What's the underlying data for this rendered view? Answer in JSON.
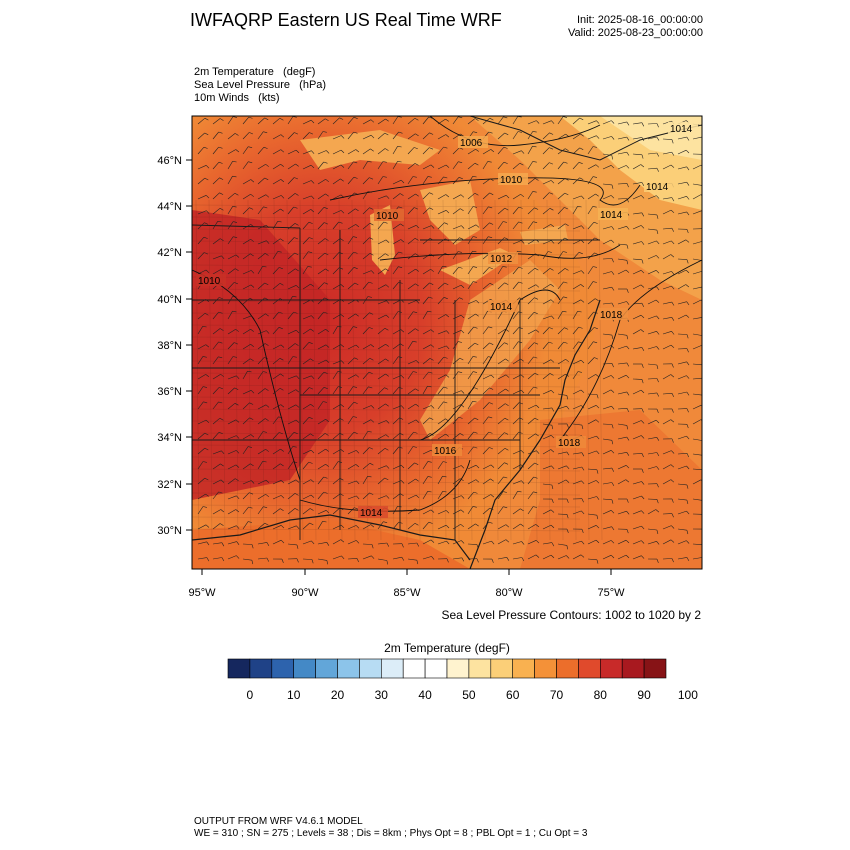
{
  "title": "IWFAQRP Eastern US Real Time WRF",
  "init": "Init: 2025-08-16_00:00:00",
  "valid": "Valid: 2025-08-23_00:00:00",
  "variables": [
    "2m Temperature   (degF)",
    "Sea Level Pressure   (hPa)",
    "10m Winds   (kts)"
  ],
  "lat_labels": [
    "46°N",
    "44°N",
    "42°N",
    "40°N",
    "38°N",
    "36°N",
    "34°N",
    "32°N",
    "30°N"
  ],
  "lon_labels": [
    "95°W",
    "90°W",
    "85°W",
    "80°W",
    "75°W"
  ],
  "pressure_labels": [
    "1006",
    "1010",
    "1010",
    "1010",
    "1012",
    "1014",
    "1014",
    "1014",
    "1016",
    "1018",
    "1018",
    "1014",
    "1014"
  ],
  "contour_note": "Sea Level Pressure Contours: 1002 to 1020 by 2",
  "colorbar": {
    "title": "2m Temperature  (degF)",
    "tick_labels": [
      "0",
      "10",
      "20",
      "30",
      "40",
      "50",
      "60",
      "70",
      "80",
      "90",
      "100"
    ],
    "colors": [
      "#15275e",
      "#1f4287",
      "#2d63ad",
      "#4489c6",
      "#62a6d9",
      "#8cc4ea",
      "#b7dcf3",
      "#dcedf8",
      "#ffffff",
      "#ffffff",
      "#fff3cf",
      "#fde3a0",
      "#fbcf78",
      "#f9b150",
      "#f49138",
      "#ec6e2b",
      "#e04a2c",
      "#c82a29",
      "#a8191f",
      "#871316"
    ]
  },
  "footer_line1": "OUTPUT FROM WRF V4.6.1 MODEL",
  "footer_line2": "WE = 310 ; SN = 275 ; Levels = 38 ; Dis = 8km ; Phys Opt = 8 ; PBL Opt = 1 ; Cu Opt = 3"
}
